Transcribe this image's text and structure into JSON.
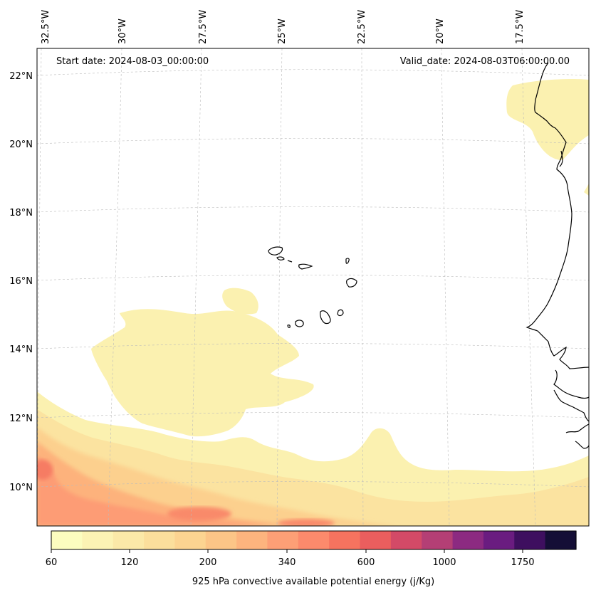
{
  "annotations": {
    "start_date": "Start date: 2024-08-03_00:00:00",
    "valid_date": "Valid_date: 2024-08-03T06:00:00.00"
  },
  "longitude_labels": [
    "32.5°W",
    "30°W",
    "27.5°W",
    "25°W",
    "22.5°W",
    "20°W",
    "17.5°W"
  ],
  "latitude_labels": [
    "22°N",
    "20°N",
    "18°N",
    "16°N",
    "14°N",
    "12°N",
    "10°N"
  ],
  "colorbar": {
    "label": "925 hPa convective available potential energy (j/Kg)",
    "tick_labels": [
      "60",
      "120",
      "200",
      "340",
      "600",
      "1000",
      "1750"
    ],
    "colors": [
      "#fcfdbf",
      "#fcf3b4",
      "#fbe9a8",
      "#fbdf9c",
      "#fcd491",
      "#fcc587",
      "#fdb47e",
      "#fd9f76",
      "#fc8a6c",
      "#f6735f",
      "#ea5e5e",
      "#d34a67",
      "#b43f75",
      "#8c2a81",
      "#6a1c80",
      "#3e0f5f",
      "#140e36"
    ],
    "colormap": "magma_r"
  },
  "map": {
    "projection": "Lambert conformal",
    "lon_range": [
      "33°W",
      "15°W"
    ],
    "lat_range": [
      "9°N",
      "23°N"
    ],
    "gridlines": true,
    "features": [
      "Cape Verde islands",
      "West African coastline (Mauritania, Senegal, Gambia, Guinea-Bissau, Guinea)"
    ]
  }
}
